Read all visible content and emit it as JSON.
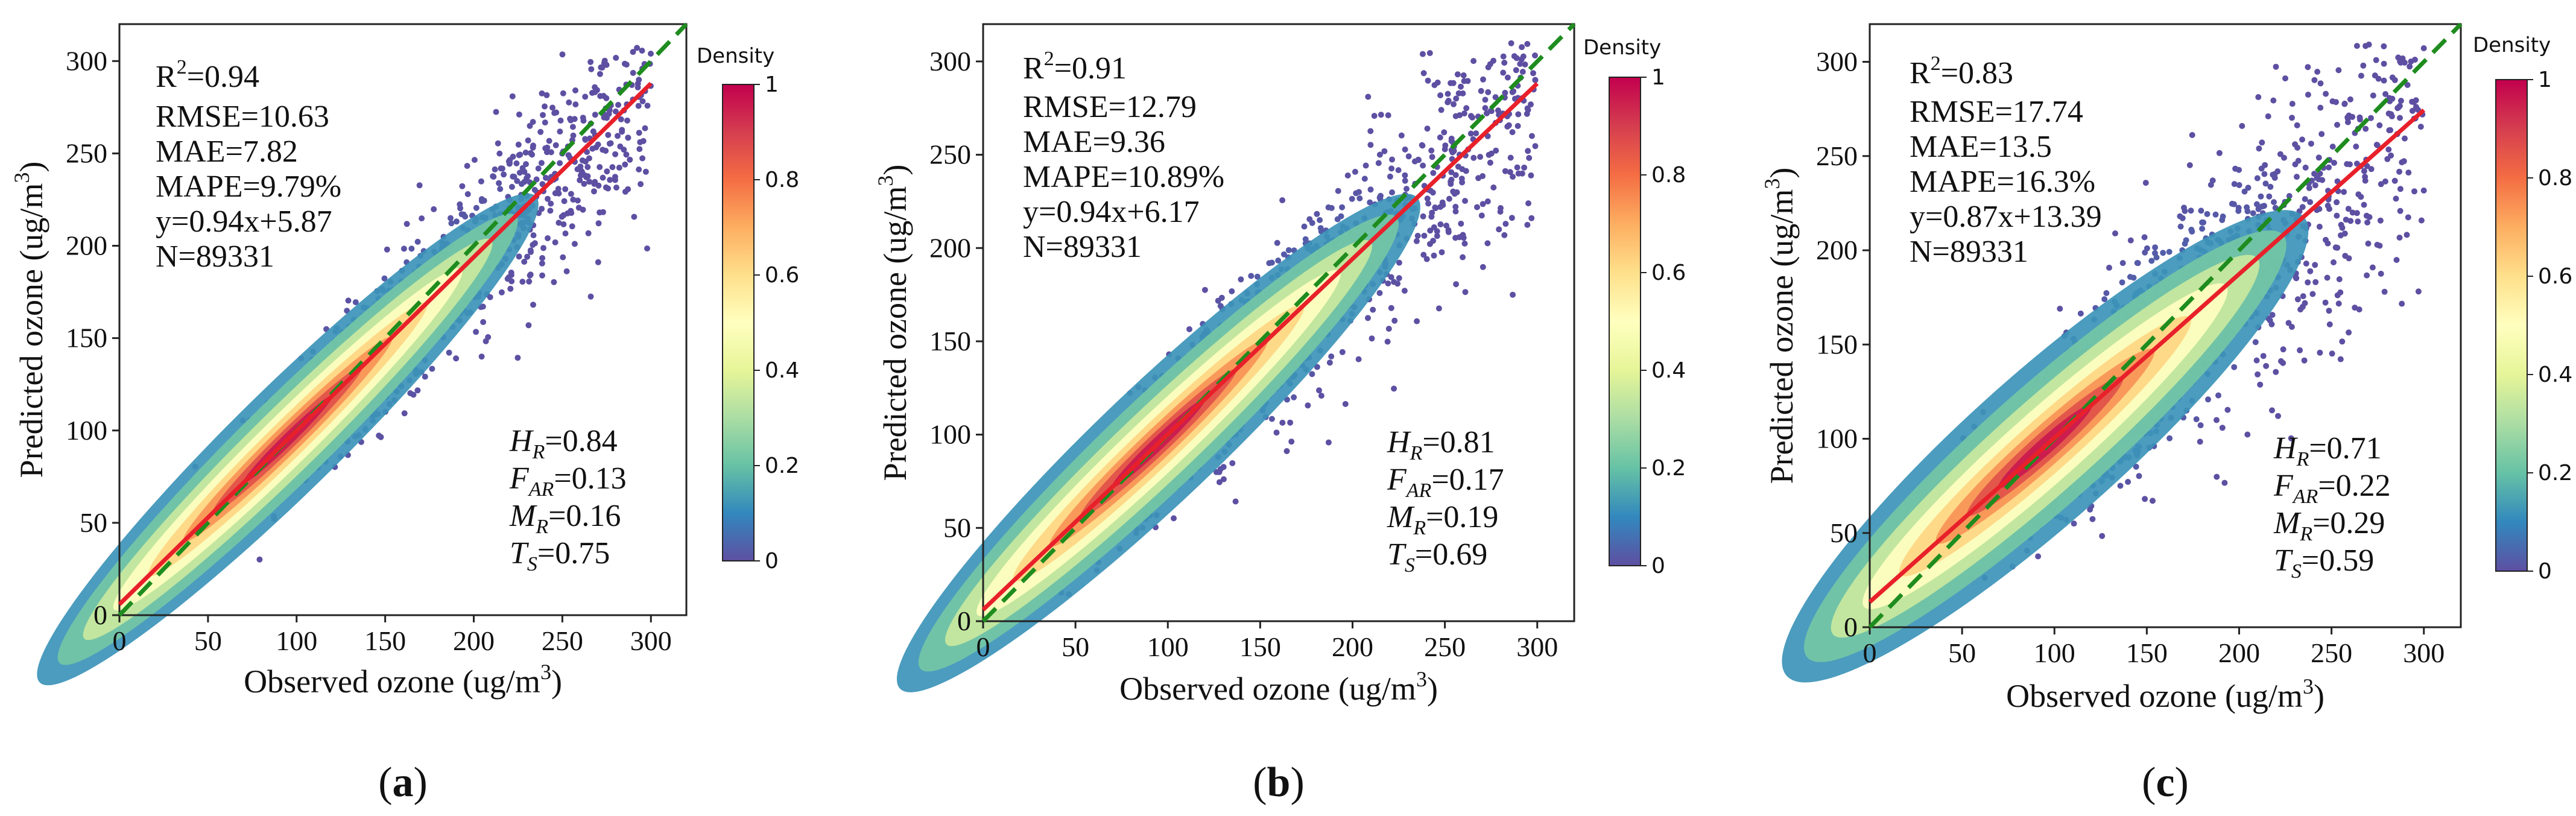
{
  "chart_data": [
    {
      "type": "scatter",
      "panel": "(a)",
      "panel_letter": "a",
      "xlabel_main": "Observed ozone (ug/m",
      "ylabel_main": "Predicted ozone (ug/m",
      "unit_exp": "3",
      "xlim": [
        0,
        320
      ],
      "ylim": [
        0,
        320
      ],
      "xticks": [
        0,
        50,
        100,
        150,
        200,
        250,
        300
      ],
      "yticks": [
        0,
        50,
        100,
        150,
        200,
        250,
        300
      ],
      "stats": [
        "=0.94",
        "RMSE=10.63",
        "MAE=7.82",
        "MAPE=9.79%",
        "y=0.94x+5.87",
        "N=89331"
      ],
      "fit": {
        "slope": 0.94,
        "intercept": 5.87
      },
      "spread": 0.09,
      "scores": [
        {
          "sym": "H",
          "sub": "R",
          "val": "=0.84"
        },
        {
          "sym": "F",
          "sub": "AR",
          "val": "=0.13"
        },
        {
          "sym": "M",
          "sub": "R",
          "val": "=0.16"
        },
        {
          "sym": "T",
          "sub": "S",
          "val": "=0.75"
        }
      ],
      "colorbar": {
        "title": "Density",
        "ticks": [
          "0",
          "0.2",
          "0.4",
          "0.6",
          "0.8",
          "1"
        ]
      }
    },
    {
      "type": "scatter",
      "panel": "(b)",
      "panel_letter": "b",
      "xlabel_main": "Observed ozone (ug/m",
      "ylabel_main": "Predicted ozone (ug/m",
      "unit_exp": "3",
      "xlim": [
        0,
        320
      ],
      "ylim": [
        0,
        320
      ],
      "xticks": [
        0,
        50,
        100,
        150,
        200,
        250,
        300
      ],
      "yticks": [
        0,
        50,
        100,
        150,
        200,
        250,
        300
      ],
      "stats": [
        "=0.91",
        "RMSE=12.79",
        "MAE=9.36",
        "MAPE=10.89%",
        "y=0.94x+6.17",
        "N=89331"
      ],
      "fit": {
        "slope": 0.94,
        "intercept": 6.17
      },
      "spread": 0.11,
      "scores": [
        {
          "sym": "H",
          "sub": "R",
          "val": "=0.81"
        },
        {
          "sym": "F",
          "sub": "AR",
          "val": "=0.17"
        },
        {
          "sym": "M",
          "sub": "R",
          "val": "=0.19"
        },
        {
          "sym": "T",
          "sub": "S",
          "val": "=0.69"
        }
      ],
      "colorbar": {
        "title": "Density",
        "ticks": [
          "0",
          "0.2",
          "0.4",
          "0.6",
          "0.8",
          "1"
        ]
      }
    },
    {
      "type": "scatter",
      "panel": "(c)",
      "panel_letter": "c",
      "xlabel_main": "Observed ozone (ug/m",
      "ylabel_main": "Predicted ozone (ug/m",
      "unit_exp": "3",
      "xlim": [
        0,
        320
      ],
      "ylim": [
        0,
        320
      ],
      "xticks": [
        0,
        50,
        100,
        150,
        200,
        250,
        300
      ],
      "yticks": [
        0,
        50,
        100,
        150,
        200,
        250,
        300
      ],
      "stats": [
        "=0.83",
        "RMSE=17.74",
        "MAE=13.5",
        "MAPE=16.3%",
        "y=0.87x+13.39",
        "N=89331"
      ],
      "fit": {
        "slope": 0.87,
        "intercept": 13.39
      },
      "spread": 0.16,
      "scores": [
        {
          "sym": "H",
          "sub": "R",
          "val": "=0.71"
        },
        {
          "sym": "F",
          "sub": "AR",
          "val": "=0.22"
        },
        {
          "sym": "M",
          "sub": "R",
          "val": "=0.29"
        },
        {
          "sym": "T",
          "sub": "S",
          "val": "=0.59"
        }
      ],
      "colorbar": {
        "title": "Density",
        "ticks": [
          "0",
          "0.2",
          "0.4",
          "0.6",
          "0.8",
          "1"
        ]
      }
    }
  ],
  "stat_r_symbol": "R",
  "stat_r_exp": "2",
  "colors": {
    "fit_line": "#e8202a",
    "identity_line": "#1e8c1e",
    "axis": "#222222"
  }
}
